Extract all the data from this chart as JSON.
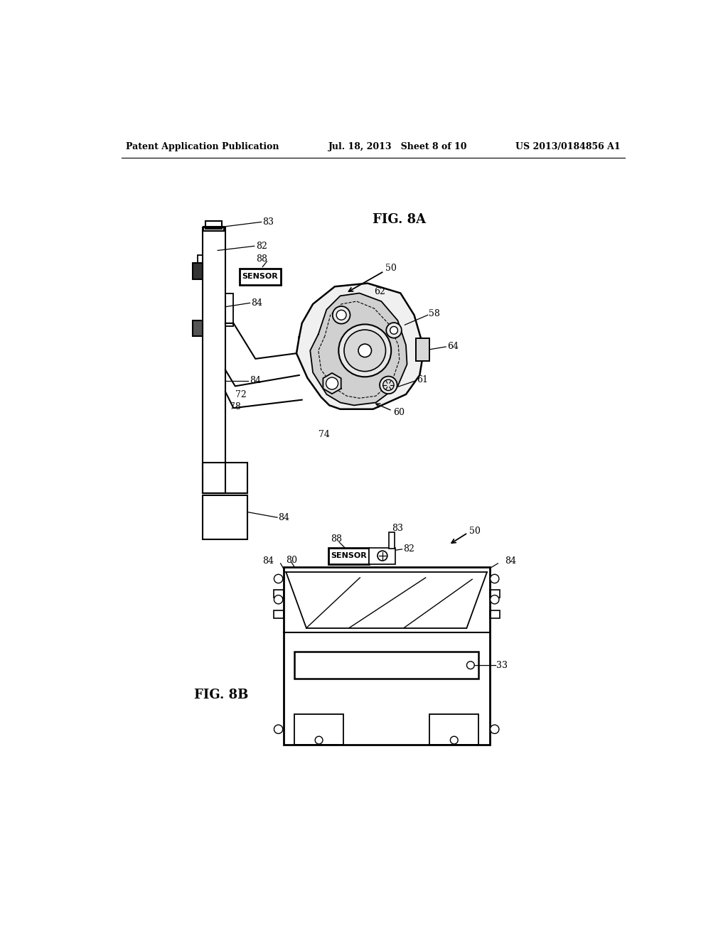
{
  "bg_color": "#ffffff",
  "header_left": "Patent Application Publication",
  "header_mid": "Jul. 18, 2013   Sheet 8 of 10",
  "header_right": "US 2013/0184856 A1",
  "fig8a_label": "FIG. 8A",
  "fig8b_label": "FIG. 8B"
}
